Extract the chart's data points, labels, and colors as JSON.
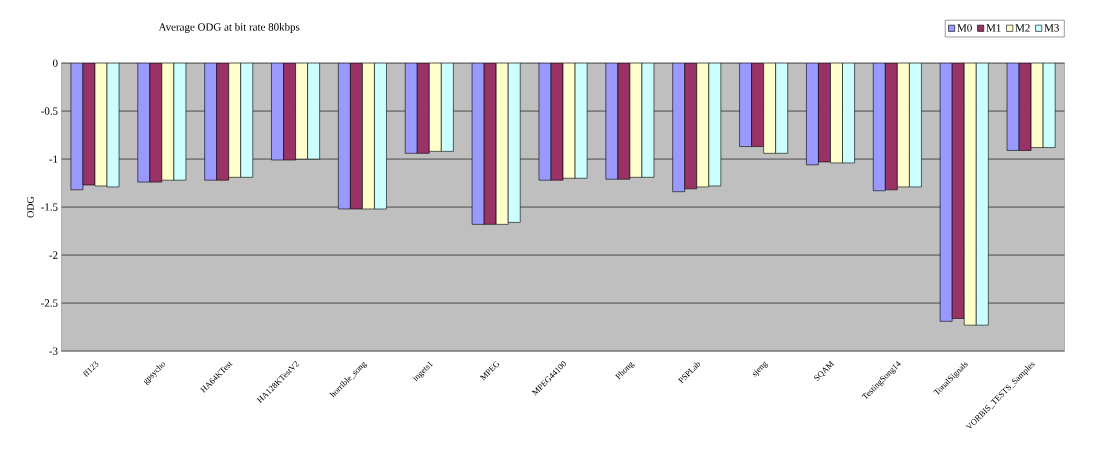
{
  "chart_data": {
    "type": "bar",
    "title": "Average ODG at bit rate 80kbps",
    "ylabel": "ODG",
    "categories": [
      "ff123",
      "gpsycho",
      "HA64KTest",
      "HA128KTestV2",
      "horrible_song",
      "ingets1",
      "MPEG",
      "MPEG44100",
      "Phong",
      "PSPLab",
      "sjeng",
      "SQAM",
      "TestingSong14",
      "TonalSignals",
      "VORBIS_TESTS_Samples"
    ],
    "series": [
      {
        "name": "M0",
        "color": "#9999ff",
        "values": [
          -1.32,
          -1.24,
          -1.22,
          -1.01,
          -1.52,
          -0.94,
          -1.68,
          -1.22,
          -1.21,
          -1.34,
          -0.87,
          -1.06,
          -1.33,
          -2.69,
          -0.91
        ]
      },
      {
        "name": "M1",
        "color": "#993366",
        "values": [
          -1.27,
          -1.24,
          -1.22,
          -1.01,
          -1.52,
          -0.94,
          -1.68,
          -1.22,
          -1.21,
          -1.31,
          -0.87,
          -1.03,
          -1.32,
          -2.66,
          -0.91
        ]
      },
      {
        "name": "M2",
        "color": "#ffffcc",
        "values": [
          -1.28,
          -1.22,
          -1.19,
          -1.0,
          -1.52,
          -0.92,
          -1.68,
          -1.2,
          -1.19,
          -1.29,
          -0.94,
          -1.04,
          -1.29,
          -2.73,
          -0.88
        ]
      },
      {
        "name": "M3",
        "color": "#ccffff",
        "values": [
          -1.29,
          -1.22,
          -1.19,
          -1.0,
          -1.52,
          -0.92,
          -1.66,
          -1.2,
          -1.19,
          -1.28,
          -0.94,
          -1.04,
          -1.29,
          -2.73,
          -0.88
        ]
      }
    ],
    "ylim": [
      -3,
      0
    ],
    "yticks": [
      -3,
      -2.5,
      -2,
      -1.5,
      -1,
      -0.5,
      0
    ],
    "grid": "y",
    "legend": "top right"
  }
}
